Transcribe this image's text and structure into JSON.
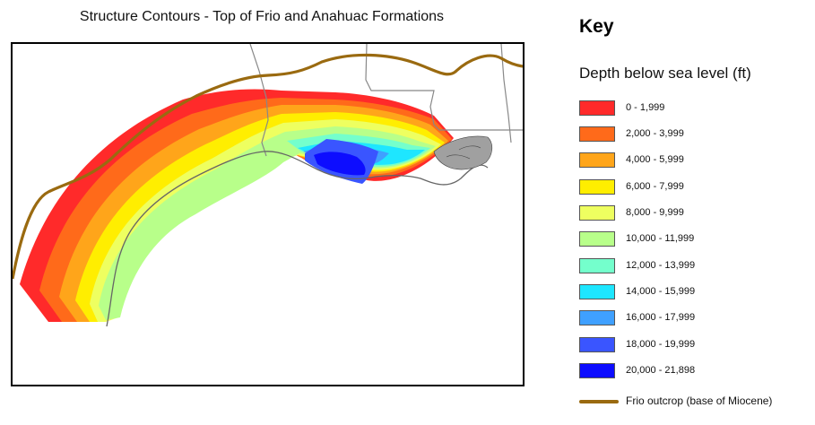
{
  "map": {
    "title": "Structure Contours - Top of Frio and Anahuac Formations"
  },
  "key": {
    "heading": "Key",
    "subtitle": "Depth below sea level (ft)",
    "items": [
      {
        "label": "0 - 1,999",
        "color": "#ff2a2a"
      },
      {
        "label": "2,000 - 3,999",
        "color": "#ff6a1a"
      },
      {
        "label": "4,000 - 5,999",
        "color": "#ffa51a"
      },
      {
        "label": "6,000 - 7,999",
        "color": "#ffee00"
      },
      {
        "label": "8,000 - 9,999",
        "color": "#eeff60"
      },
      {
        "label": "10,000 - 11,999",
        "color": "#b8ff8a"
      },
      {
        "label": "12,000 - 13,999",
        "color": "#74ffcc"
      },
      {
        "label": "14,000 - 15,999",
        "color": "#1ee6ff"
      },
      {
        "label": "16,000 - 17,999",
        "color": "#3fa0ff"
      },
      {
        "label": "18,000 - 19,999",
        "color": "#3a55ff"
      },
      {
        "label": "20,000 - 21,898",
        "color": "#0d0dff"
      }
    ],
    "outcrop": {
      "label": "Frio outcrop (base of Miocene)",
      "color": "#9a6a10"
    }
  }
}
